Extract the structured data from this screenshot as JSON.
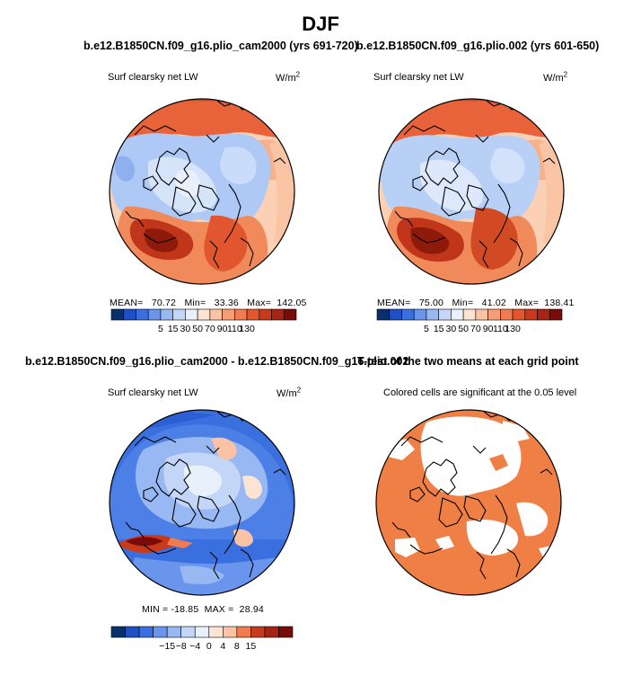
{
  "figure": {
    "title": "DJF",
    "variable": "Surf clearsky net LW",
    "units_base": "W/m",
    "units_exp": "2"
  },
  "panels": [
    {
      "id": "p1",
      "title": "b.e12.B1850CN.f09_g16.plio_cam2000 (yrs 691-720)",
      "stats": "MEAN=   70.72   Min=   33.36   Max=  142.05"
    },
    {
      "id": "p2",
      "title": "b.e12.B1850CN.f09_g16.plio.002 (yrs 601-650)",
      "stats": "MEAN=   75.00   Min=   41.02   Max=  138.41"
    },
    {
      "id": "p3",
      "title": "b.e12.B1850CN.f09_g16.plio_cam2000 - b.e12.B1850CN.f09_g16.plio.002",
      "stats": "MIN = -18.85  MAX =  28.94"
    },
    {
      "id": "p4",
      "title": "T-test of the two means at each grid point",
      "subtitle": "Colored cells are significant at the 0.05 level"
    }
  ],
  "colors": {
    "abs_scale": [
      "#08306b",
      "#1f4fc4",
      "#3a6fe0",
      "#6a95ec",
      "#97b8f2",
      "#c3d6f8",
      "#e8f0fc",
      "#fde3d2",
      "#fbc3a3",
      "#f89e76",
      "#f17a4e",
      "#e4572e",
      "#c93a1c",
      "#a82412",
      "#7a0c08"
    ],
    "diff_scale": [
      "#08306b",
      "#1f4fc4",
      "#3a6fe0",
      "#6a95ec",
      "#97b8f2",
      "#c3d6f8",
      "#e8f0fc",
      "#fde3d2",
      "#fbc3a3",
      "#f17a4e",
      "#c93a1c",
      "#a82412",
      "#7a0c08"
    ],
    "significant": "#f07f45",
    "coastline": "#000000"
  },
  "chart_data": [
    {
      "type": "heatmap",
      "panel": "p1",
      "title": "b.e12.B1850CN.f09_g16.plio_cam2000 (yrs 691-720)",
      "subtitle": "Surf clearsky net LW",
      "units": "W/m2",
      "projection": "north polar stereographic",
      "stats": {
        "mean": 70.72,
        "min": 33.36,
        "max": 142.05
      },
      "colorbar_labels": [
        "5",
        "15",
        "30",
        "50",
        "70",
        "90",
        "110",
        "130"
      ]
    },
    {
      "type": "heatmap",
      "panel": "p2",
      "title": "b.e12.B1850CN.f09_g16.plio.002 (yrs 601-650)",
      "subtitle": "Surf clearsky net LW",
      "units": "W/m2",
      "projection": "north polar stereographic",
      "stats": {
        "mean": 75.0,
        "min": 41.02,
        "max": 138.41
      },
      "colorbar_labels": [
        "5",
        "15",
        "30",
        "50",
        "70",
        "90",
        "110",
        "130"
      ]
    },
    {
      "type": "heatmap",
      "panel": "p3",
      "title": "b.e12.B1850CN.f09_g16.plio_cam2000 - b.e12.B1850CN.f09_g16.plio.002",
      "subtitle": "Surf clearsky net LW",
      "units": "W/m2",
      "projection": "north polar stereographic",
      "stats": {
        "min": -18.85,
        "max": 28.94
      },
      "colorbar_labels": [
        "-15",
        "-8",
        "-4",
        "0",
        "4",
        "8",
        "15"
      ]
    },
    {
      "type": "heatmap",
      "panel": "p4",
      "title": "T-test of the two means at each grid point",
      "subtitle": "Colored cells are significant at the 0.05 level",
      "projection": "north polar stereographic",
      "significance_level": 0.05
    }
  ]
}
